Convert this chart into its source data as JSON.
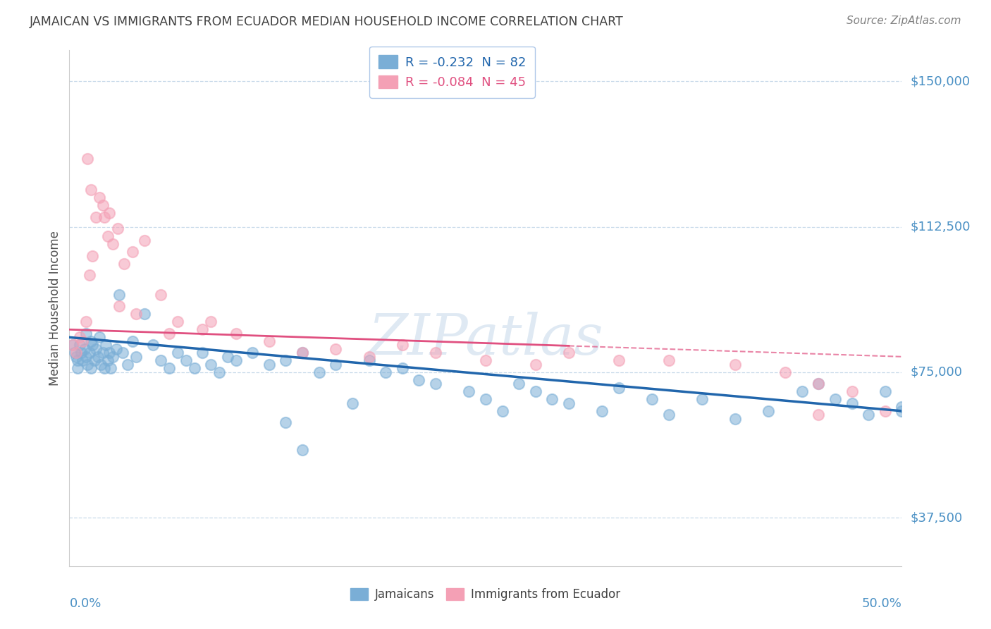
{
  "title": "JAMAICAN VS IMMIGRANTS FROM ECUADOR MEDIAN HOUSEHOLD INCOME CORRELATION CHART",
  "source": "Source: ZipAtlas.com",
  "ylabel": "Median Household Income",
  "yticks": [
    37500,
    75000,
    112500,
    150000
  ],
  "ytick_labels": [
    "$37,500",
    "$75,000",
    "$112,500",
    "$150,000"
  ],
  "xlim": [
    0.0,
    50.0
  ],
  "ylim": [
    25000,
    158000
  ],
  "watermark": "ZIPatlas",
  "blue_color": "#7aaed6",
  "pink_color": "#f4a0b5",
  "title_color": "#505050",
  "axis_label_color": "#4a90c4",
  "grid_color": "#c8daea",
  "jam_trend_color": "#2166ac",
  "ecu_trend_color": "#e05080",
  "jamaicans_x": [
    0.2,
    0.3,
    0.4,
    0.5,
    0.5,
    0.6,
    0.7,
    0.8,
    0.9,
    1.0,
    1.0,
    1.1,
    1.2,
    1.3,
    1.3,
    1.4,
    1.5,
    1.6,
    1.7,
    1.8,
    1.9,
    2.0,
    2.1,
    2.2,
    2.3,
    2.4,
    2.5,
    2.6,
    2.8,
    3.0,
    3.2,
    3.5,
    3.8,
    4.0,
    4.5,
    5.0,
    5.5,
    6.0,
    6.5,
    7.0,
    7.5,
    8.0,
    8.5,
    9.0,
    9.5,
    10.0,
    11.0,
    12.0,
    13.0,
    14.0,
    15.0,
    16.0,
    17.0,
    18.0,
    19.0,
    20.0,
    21.0,
    22.0,
    24.0,
    25.0,
    26.0,
    27.0,
    28.0,
    29.0,
    30.0,
    32.0,
    33.0,
    35.0,
    36.0,
    38.0,
    40.0,
    42.0,
    44.0,
    45.0,
    46.0,
    47.0,
    48.0,
    49.0,
    50.0,
    50.0,
    13.0,
    14.0
  ],
  "jamaicans_y": [
    82000,
    80000,
    79000,
    78000,
    76000,
    82000,
    80000,
    78000,
    81000,
    79000,
    85000,
    77000,
    80000,
    83000,
    76000,
    82000,
    78000,
    81000,
    79000,
    84000,
    77000,
    80000,
    76000,
    82000,
    78000,
    80000,
    76000,
    79000,
    81000,
    95000,
    80000,
    77000,
    83000,
    79000,
    90000,
    82000,
    78000,
    76000,
    80000,
    78000,
    76000,
    80000,
    77000,
    75000,
    79000,
    78000,
    80000,
    77000,
    78000,
    80000,
    75000,
    77000,
    67000,
    78000,
    75000,
    76000,
    73000,
    72000,
    70000,
    68000,
    65000,
    72000,
    70000,
    68000,
    67000,
    65000,
    71000,
    68000,
    64000,
    68000,
    63000,
    65000,
    70000,
    72000,
    68000,
    67000,
    64000,
    70000,
    66000,
    65000,
    62000,
    55000
  ],
  "ecuador_x": [
    0.2,
    0.4,
    0.6,
    0.8,
    1.0,
    1.2,
    1.4,
    1.6,
    1.8,
    2.0,
    2.3,
    2.6,
    2.9,
    3.3,
    3.8,
    4.5,
    5.5,
    6.5,
    8.0,
    10.0,
    12.0,
    14.0,
    16.0,
    18.0,
    20.0,
    22.0,
    25.0,
    28.0,
    30.0,
    33.0,
    36.0,
    40.0,
    43.0,
    45.0,
    47.0,
    49.0,
    1.1,
    1.3,
    2.1,
    2.4,
    3.0,
    4.0,
    6.0,
    8.5,
    45.0
  ],
  "ecuador_y": [
    82000,
    80000,
    84000,
    83000,
    88000,
    100000,
    105000,
    115000,
    120000,
    118000,
    110000,
    108000,
    112000,
    103000,
    106000,
    109000,
    95000,
    88000,
    86000,
    85000,
    83000,
    80000,
    81000,
    79000,
    82000,
    80000,
    78000,
    77000,
    80000,
    78000,
    78000,
    77000,
    75000,
    72000,
    70000,
    65000,
    130000,
    122000,
    115000,
    116000,
    92000,
    90000,
    85000,
    88000,
    64000
  ],
  "jam_trend_x0": 0.0,
  "jam_trend_y0": 84000,
  "jam_trend_x1": 50.0,
  "jam_trend_y1": 65000,
  "ecu_trend_x0": 0.0,
  "ecu_trend_y0": 86000,
  "ecu_trend_x1": 50.0,
  "ecu_trend_y1": 79000,
  "ecu_solid_end_x": 30.0
}
